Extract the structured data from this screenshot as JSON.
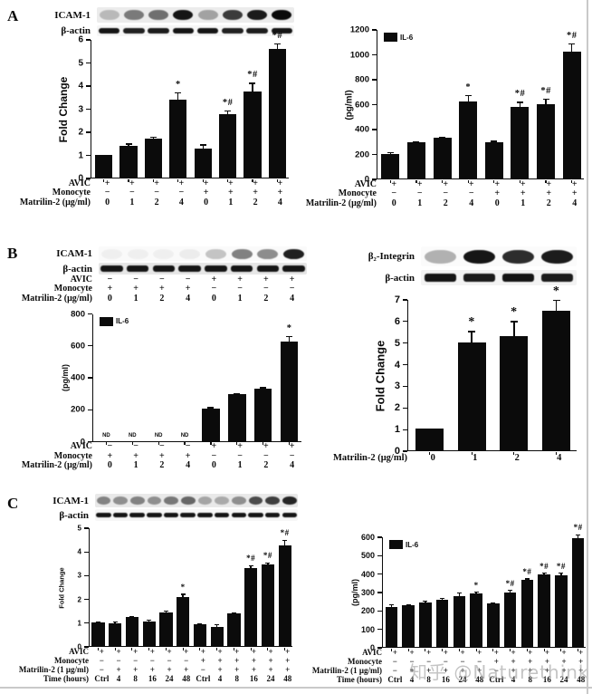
{
  "watermark": "知乎 @Naturethink",
  "panels": [
    {
      "letter": "A"
    },
    {
      "letter": "B"
    },
    {
      "letter": "C"
    }
  ],
  "colors": {
    "bar": "#0b0b0b",
    "axis": "#0b0b0b",
    "watermark": "#9e9e9e",
    "divider": "#c9c9c9"
  },
  "blots": [
    {
      "id": "panel-a-icam1-actin",
      "rows": [
        {
          "label": "ICAM-1",
          "style": "blob",
          "bg": "#ececec",
          "intensities": [
            0.22,
            0.5,
            0.55,
            0.95,
            0.32,
            0.78,
            0.92,
            1.0
          ]
        },
        {
          "label": "β-actin",
          "style": "dash",
          "bg": "#f6f6f6",
          "intensities": [
            0.95,
            0.9,
            0.92,
            0.95,
            0.95,
            0.9,
            0.92,
            0.95
          ]
        }
      ]
    },
    {
      "id": "panel-b-icam1-actin",
      "rows": [
        {
          "label": "ICAM-1",
          "style": "blob",
          "bg": "#fafafa",
          "intensities": [
            0.04,
            0.04,
            0.04,
            0.05,
            0.22,
            0.5,
            0.45,
            0.9
          ]
        },
        {
          "label": "β-actin",
          "style": "dash",
          "bg": "#e6e6e6",
          "intensities": [
            0.95,
            0.95,
            0.95,
            0.95,
            0.95,
            0.95,
            0.95,
            0.95
          ]
        }
      ],
      "x_rows": [
        {
          "label": "AVIC",
          "values": [
            "−",
            "−",
            "−",
            "−",
            "+",
            "+",
            "+",
            "+"
          ]
        },
        {
          "label": "Monocyte",
          "values": [
            "+",
            "+",
            "+",
            "+",
            "−",
            "−",
            "−",
            "−"
          ]
        },
        {
          "label": "Matrilin-2 (μg/ml)",
          "values": [
            "0",
            "1",
            "2",
            "4",
            "0",
            "1",
            "2",
            "4"
          ]
        }
      ]
    },
    {
      "id": "panel-b-integrin-actin",
      "rows": [
        {
          "label": "β₂-Integrin",
          "style": "blob",
          "bg": "#fbfbfb",
          "intensities": [
            0.3,
            0.95,
            0.85,
            0.92
          ]
        },
        {
          "label": "β-actin",
          "style": "dash",
          "bg": "#f3f3f3",
          "intensities": [
            0.95,
            0.92,
            0.95,
            0.92
          ]
        }
      ]
    },
    {
      "id": "panel-c-icam1-actin",
      "rows": [
        {
          "label": "ICAM-1",
          "style": "blob",
          "bg": "#e9e9e9",
          "intensities": [
            0.45,
            0.4,
            0.46,
            0.4,
            0.5,
            0.58,
            0.3,
            0.28,
            0.4,
            0.7,
            0.76,
            0.88
          ]
        },
        {
          "label": "β-actin",
          "style": "dash",
          "bg": "#f7f7f7",
          "intensities": [
            0.95,
            0.95,
            0.95,
            0.95,
            0.95,
            0.95,
            0.95,
            0.95,
            0.95,
            0.95,
            0.95,
            0.95
          ]
        }
      ]
    }
  ],
  "chart_data": [
    {
      "id": "a-left-icam1-fold-change",
      "type": "bar",
      "title": "",
      "xlabel": "",
      "ylabel": "Fold Change",
      "ylim": [
        0,
        6
      ],
      "yticks": [
        0,
        1,
        2,
        3,
        4,
        5,
        6
      ],
      "legend": "",
      "bw": 0.7,
      "cap": 7,
      "bars": [
        {
          "v": 1.0,
          "e": 0,
          "s": ""
        },
        {
          "v": 1.37,
          "e": 0.1,
          "s": ""
        },
        {
          "v": 1.7,
          "e": 0.08,
          "s": ""
        },
        {
          "v": 3.37,
          "e": 0.32,
          "s": "*"
        },
        {
          "v": 1.25,
          "e": 0.18,
          "s": ""
        },
        {
          "v": 2.73,
          "e": 0.18,
          "s": "*#"
        },
        {
          "v": 3.72,
          "e": 0.38,
          "s": "*#"
        },
        {
          "v": 5.55,
          "e": 0.27,
          "s": "*#"
        }
      ],
      "x_rows": [
        {
          "label": "AVIC",
          "values": [
            "+",
            "+",
            "+",
            "+",
            "+",
            "+",
            "+",
            "+"
          ]
        },
        {
          "label": "Monocyte",
          "values": [
            "−",
            "−",
            "−",
            "−",
            "+",
            "+",
            "+",
            "+"
          ]
        },
        {
          "label": "Matrilin-2 (μg/ml)",
          "values": [
            "0",
            "1",
            "2",
            "4",
            "0",
            "1",
            "2",
            "4"
          ]
        }
      ]
    },
    {
      "id": "a-right-il6",
      "type": "bar",
      "title": "",
      "xlabel": "",
      "ylabel": "(pg/ml)",
      "ylim": [
        0,
        1200
      ],
      "yticks": [
        0,
        200,
        400,
        600,
        800,
        1000,
        1200
      ],
      "legend": "IL-6",
      "bw": 0.7,
      "cap": 7,
      "bars": [
        {
          "v": 200,
          "e": 10,
          "s": ""
        },
        {
          "v": 290,
          "e": 8,
          "s": ""
        },
        {
          "v": 325,
          "e": 10,
          "s": ""
        },
        {
          "v": 620,
          "e": 50,
          "s": "*"
        },
        {
          "v": 290,
          "e": 12,
          "s": ""
        },
        {
          "v": 575,
          "e": 40,
          "s": "*#"
        },
        {
          "v": 595,
          "e": 45,
          "s": "*#"
        },
        {
          "v": 1020,
          "e": 65,
          "s": "*#"
        }
      ],
      "x_rows": [
        {
          "label": "AVIC",
          "values": [
            "+",
            "+",
            "+",
            "+",
            "+",
            "+",
            "+",
            "+"
          ]
        },
        {
          "label": "Monocyte",
          "values": [
            "−",
            "−",
            "−",
            "−",
            "+",
            "+",
            "+",
            "+"
          ]
        },
        {
          "label": "Matrilin-2 (μg/ml)",
          "values": [
            "0",
            "1",
            "2",
            "4",
            "0",
            "1",
            "2",
            "4"
          ]
        }
      ]
    },
    {
      "id": "b-left-il6",
      "type": "bar",
      "title": "",
      "xlabel": "",
      "ylabel": "(pg/ml)",
      "ylim": [
        0,
        800
      ],
      "yticks": [
        0,
        200,
        400,
        600,
        800
      ],
      "legend": "IL-6",
      "bw": 0.68,
      "cap": 7,
      "bars": [
        {
          "v": null,
          "nd": "ND"
        },
        {
          "v": null,
          "nd": "ND"
        },
        {
          "v": null,
          "nd": "ND"
        },
        {
          "v": null,
          "nd": "ND"
        },
        {
          "v": 200,
          "e": 10,
          "s": ""
        },
        {
          "v": 290,
          "e": 8,
          "s": ""
        },
        {
          "v": 325,
          "e": 10,
          "s": ""
        },
        {
          "v": 620,
          "e": 35,
          "s": "*"
        }
      ],
      "x_rows": [
        {
          "label": "AVIC",
          "values": [
            "−",
            "−",
            "−",
            "−",
            "+",
            "+",
            "+",
            "+"
          ]
        },
        {
          "label": "Monocyte",
          "values": [
            "+",
            "+",
            "+",
            "+",
            "−",
            "−",
            "−",
            "−"
          ]
        },
        {
          "label": "Matrilin-2 (μg/ml)",
          "values": [
            "0",
            "1",
            "2",
            "4",
            "0",
            "1",
            "2",
            "4"
          ]
        }
      ]
    },
    {
      "id": "b-right-integrin-fold-change",
      "type": "bar",
      "title": "",
      "xlabel": "Matrilin-2 (μg/ml)",
      "ylabel": "Fold Change",
      "ylim": [
        0,
        7
      ],
      "yticks": [
        0,
        1,
        2,
        3,
        4,
        5,
        6,
        7
      ],
      "legend": "",
      "bw": 0.66,
      "cap": 8,
      "bars": [
        {
          "v": 1.0,
          "e": 0,
          "s": ""
        },
        {
          "v": 4.97,
          "e": 0.55,
          "s": "*"
        },
        {
          "v": 5.27,
          "e": 0.7,
          "s": "*"
        },
        {
          "v": 6.45,
          "e": 0.5,
          "s": "*"
        }
      ],
      "x_rows": [
        {
          "label": "Matrilin-2 (μg/ml)",
          "values": [
            "0",
            "1",
            "2",
            "4"
          ]
        }
      ]
    },
    {
      "id": "c-left-icam1-fold-change",
      "type": "bar",
      "title": "",
      "xlabel": "",
      "ylabel": "Fold Change",
      "ylim": [
        0,
        5
      ],
      "yticks": [
        0,
        1,
        2,
        3,
        4,
        5
      ],
      "legend": "",
      "bw": 0.76,
      "cap": 5,
      "bars": [
        {
          "v": 1.0,
          "e": 0.02,
          "s": ""
        },
        {
          "v": 0.97,
          "e": 0.05,
          "s": ""
        },
        {
          "v": 1.22,
          "e": 0.04,
          "s": ""
        },
        {
          "v": 1.05,
          "e": 0.05,
          "s": ""
        },
        {
          "v": 1.43,
          "e": 0.05,
          "s": ""
        },
        {
          "v": 2.05,
          "e": 0.15,
          "s": "*"
        },
        {
          "v": 0.93,
          "e": 0.04,
          "s": ""
        },
        {
          "v": 0.82,
          "e": 0.1,
          "s": ""
        },
        {
          "v": 1.38,
          "e": 0.04,
          "s": ""
        },
        {
          "v": 3.28,
          "e": 0.12,
          "s": "*#"
        },
        {
          "v": 3.42,
          "e": 0.1,
          "s": "*#"
        },
        {
          "v": 4.25,
          "e": 0.22,
          "s": "*#"
        }
      ],
      "x_rows": [
        {
          "label": "AVIC",
          "values": [
            "+",
            "+",
            "+",
            "+",
            "+",
            "+",
            "+",
            "+",
            "+",
            "+",
            "+",
            "+"
          ]
        },
        {
          "label": "Monocyte",
          "values": [
            "−",
            "−",
            "−",
            "−",
            "−",
            "−",
            "+",
            "+",
            "+",
            "+",
            "+",
            "+"
          ]
        },
        {
          "label": "Matrilin-2 (1 μg/ml)",
          "values": [
            "−",
            "+",
            "+",
            "+",
            "+",
            "+",
            "−",
            "+",
            "+",
            "+",
            "+",
            "+"
          ]
        },
        {
          "label": "Time (hours)",
          "values": [
            "Ctrl",
            "4",
            "8",
            "16",
            "24",
            "48",
            "Ctrl",
            "4",
            "8",
            "16",
            "24",
            "48"
          ]
        }
      ]
    },
    {
      "id": "c-right-il6",
      "type": "bar",
      "title": "",
      "xlabel": "",
      "ylabel": "(pg/ml)",
      "ylim": [
        0,
        600
      ],
      "yticks": [
        0,
        100,
        200,
        300,
        400,
        500,
        600
      ],
      "legend": "IL-6",
      "bw": 0.72,
      "cap": 5,
      "bars": [
        {
          "v": 218,
          "e": 12,
          "s": ""
        },
        {
          "v": 225,
          "e": 8,
          "s": ""
        },
        {
          "v": 240,
          "e": 12,
          "s": ""
        },
        {
          "v": 255,
          "e": 12,
          "s": ""
        },
        {
          "v": 275,
          "e": 20,
          "s": ""
        },
        {
          "v": 290,
          "e": 10,
          "s": "*"
        },
        {
          "v": 235,
          "e": 8,
          "s": ""
        },
        {
          "v": 297,
          "e": 12,
          "s": "*#"
        },
        {
          "v": 362,
          "e": 10,
          "s": "*#"
        },
        {
          "v": 395,
          "e": 8,
          "s": "*#"
        },
        {
          "v": 387,
          "e": 15,
          "s": "*#"
        },
        {
          "v": 590,
          "e": 20,
          "s": "*#"
        }
      ],
      "x_rows": [
        {
          "label": "AVIC",
          "values": [
            "+",
            "+",
            "+",
            "+",
            "+",
            "+",
            "+",
            "+",
            "+",
            "+",
            "+",
            "+"
          ]
        },
        {
          "label": "Monocyte",
          "values": [
            "−",
            "−",
            "−",
            "−",
            "−",
            "−",
            "+",
            "+",
            "+",
            "+",
            "+",
            "+"
          ]
        },
        {
          "label": "Matrilin-2 (1 μg/ml)",
          "values": [
            "−",
            "+",
            "+",
            "+",
            "+",
            "+",
            "−",
            "+",
            "+",
            "+",
            "+",
            "+"
          ]
        },
        {
          "label": "Time (hours)",
          "values": [
            "Ctrl",
            "4",
            "8",
            "16",
            "24",
            "48",
            "Ctrl",
            "4",
            "8",
            "16",
            "24",
            "48"
          ]
        }
      ]
    }
  ]
}
